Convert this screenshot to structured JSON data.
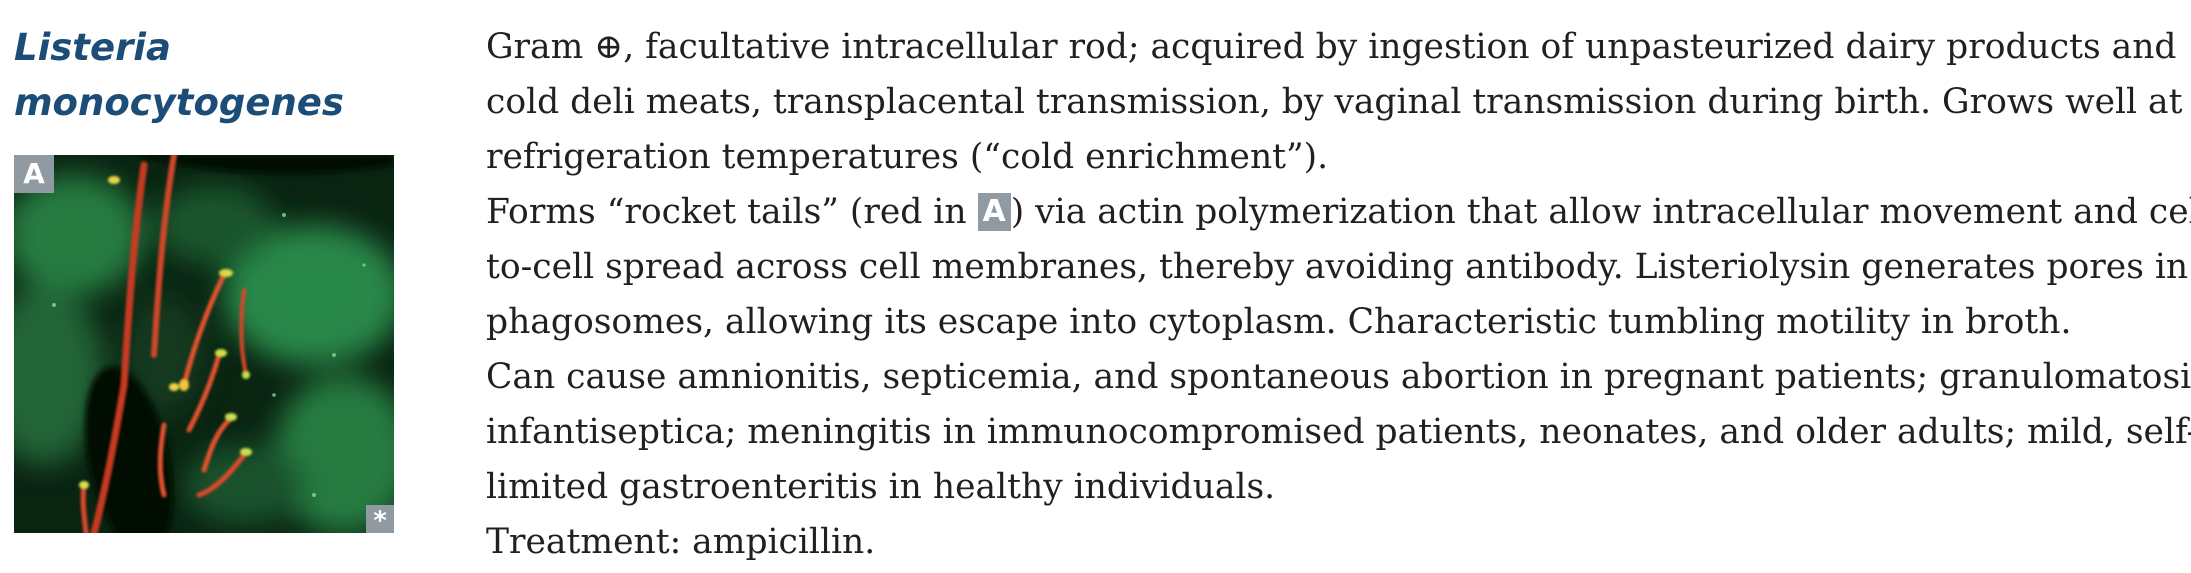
{
  "title": {
    "line1": "Listeria",
    "line2": "monocytogenes"
  },
  "figure": {
    "label": "A",
    "corner_symbol": "*",
    "description_icon": "fluorescence-micrograph"
  },
  "paragraphs": [
    {
      "lines": [
        "Gram ⊕, facultative intracellular rod; acquired by ingestion of unpasteurized dairy products and",
        "cold deli meats, transplacental transmission, by vaginal transmission during birth. Grows well at",
        "refrigeration temperatures (“cold enrichment”)."
      ]
    },
    {
      "line1_before": "Forms “rocket tails” (red in ",
      "inline_label": "A",
      "line1_after": ") via actin polymerization that allow intracellular movement and cell-",
      "lines": [
        "to-cell spread across cell membranes, thereby avoiding antibody. Listeriolysin generates pores in",
        "phagosomes, allowing its escape into cytoplasm. Characteristic tumbling motility in broth."
      ]
    },
    {
      "lines": [
        "Can cause amnionitis, septicemia, and spontaneous abortion in pregnant patients; granulomatosis",
        "infantiseptica; meningitis in immunocompromised patients, neonates, and older adults; mild, self-",
        "limited gastroenteritis in healthy individuals."
      ]
    },
    {
      "lines": [
        "Treatment: ampicillin."
      ]
    }
  ],
  "colors": {
    "heading": "#1b4d78",
    "body_text": "#231f20",
    "label_badge": "#8f9aa3",
    "rocket_tail": "#e0442c",
    "cytoplasm_stain": "#2e8f4a"
  }
}
